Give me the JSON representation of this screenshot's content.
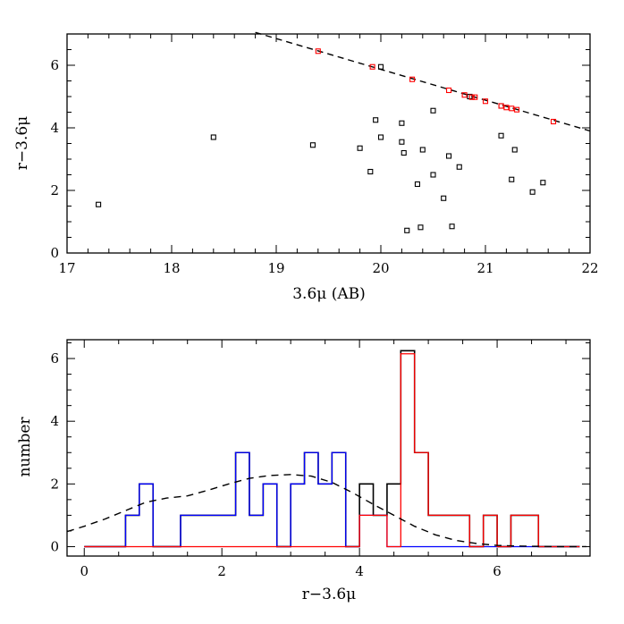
{
  "chart_data": [
    {
      "type": "scatter",
      "title": "",
      "xlabel": "3.6μ (AB)",
      "ylabel": "r−3.6μ",
      "xlim": [
        17,
        22
      ],
      "ylim": [
        0,
        7
      ],
      "xticks": [
        17,
        18,
        19,
        20,
        21,
        22
      ],
      "yticks": [
        0,
        2,
        4,
        6
      ],
      "xtick_labels": [
        "17",
        "18",
        "19",
        "20",
        "21",
        "22"
      ],
      "ytick_labels": [
        "0",
        "2",
        "4",
        "6"
      ],
      "colors": {
        "black_points": "#000000",
        "red_points": "#ff0000",
        "fit_line": "#000000"
      },
      "fit_line": {
        "style": "dashed",
        "x": [
          18.8,
          22.0
        ],
        "y": [
          7.05,
          3.9
        ]
      },
      "series": [
        {
          "name": "black",
          "points": [
            [
              17.3,
              1.55
            ],
            [
              18.4,
              3.7
            ],
            [
              19.35,
              3.45
            ],
            [
              19.8,
              3.35
            ],
            [
              19.9,
              2.6
            ],
            [
              19.95,
              4.25
            ],
            [
              20.0,
              3.7
            ],
            [
              20.2,
              4.15
            ],
            [
              20.2,
              3.55
            ],
            [
              20.22,
              3.2
            ],
            [
              20.25,
              0.72
            ],
            [
              20.35,
              2.2
            ],
            [
              20.38,
              0.82
            ],
            [
              20.4,
              3.3
            ],
            [
              20.5,
              4.55
            ],
            [
              20.5,
              2.5
            ],
            [
              20.6,
              1.75
            ],
            [
              20.65,
              3.1
            ],
            [
              20.68,
              0.85
            ],
            [
              20.75,
              2.75
            ],
            [
              21.15,
              3.75
            ],
            [
              21.25,
              2.35
            ],
            [
              21.28,
              3.3
            ],
            [
              21.45,
              1.95
            ],
            [
              21.55,
              2.25
            ],
            [
              21.15,
              4.7
            ],
            [
              20.85,
              5.0
            ],
            [
              20.0,
              5.95
            ]
          ]
        },
        {
          "name": "red",
          "points": [
            [
              19.4,
              6.45
            ],
            [
              19.92,
              5.95
            ],
            [
              20.3,
              5.55
            ],
            [
              20.65,
              5.2
            ],
            [
              20.8,
              5.05
            ],
            [
              20.87,
              4.98
            ],
            [
              20.9,
              4.98
            ],
            [
              21.0,
              4.85
            ],
            [
              21.15,
              4.7
            ],
            [
              21.2,
              4.65
            ],
            [
              21.25,
              4.62
            ],
            [
              21.3,
              4.58
            ],
            [
              21.65,
              4.2
            ]
          ]
        }
      ]
    },
    {
      "type": "histogram",
      "title": "",
      "xlabel": "r−3.6μ",
      "ylabel": "number",
      "xlim": [
        -0.25,
        7.35
      ],
      "ylim": [
        -0.3,
        6.6
      ],
      "xticks": [
        0,
        2,
        4,
        6
      ],
      "yticks": [
        0,
        2,
        4,
        6
      ],
      "xtick_labels": [
        "0",
        "2",
        "4",
        "6"
      ],
      "ytick_labels": [
        "0",
        "2",
        "4",
        "6"
      ],
      "colors": {
        "total": "#000000",
        "blue": "#0000ff",
        "red": "#ff0000",
        "gaussian": "#000000"
      },
      "bin_edges": [
        0.0,
        0.2,
        0.4,
        0.6,
        0.8,
        1.0,
        1.2,
        1.4,
        1.6,
        1.8,
        2.0,
        2.2,
        2.4,
        2.6,
        2.8,
        3.0,
        3.2,
        3.4,
        3.6,
        3.8,
        4.0,
        4.2,
        4.4,
        4.6,
        4.8,
        5.0,
        5.2,
        5.4,
        5.6,
        5.8,
        6.0,
        6.2,
        6.4,
        6.6,
        6.8,
        7.0,
        7.2
      ],
      "series": [
        {
          "name": "total",
          "values": [
            0,
            0,
            0,
            1,
            2,
            0,
            0,
            1,
            1,
            1,
            1,
            3,
            1,
            2,
            0,
            2,
            3,
            2,
            3,
            0,
            2,
            1,
            2,
            6.25,
            3,
            1,
            1,
            1,
            0,
            1,
            0,
            1,
            1,
            0,
            0,
            0
          ]
        },
        {
          "name": "blue",
          "values": [
            0,
            0,
            0,
            1,
            2,
            0,
            0,
            1,
            1,
            1,
            1,
            3,
            1,
            2,
            0,
            2,
            3,
            2,
            3,
            0,
            1,
            1,
            0,
            0,
            0,
            0,
            0,
            0,
            0,
            0,
            0,
            0,
            0,
            0,
            0,
            0
          ]
        },
        {
          "name": "red",
          "values": [
            0,
            0,
            0,
            0,
            0,
            0,
            0,
            0,
            0,
            0,
            0,
            0,
            0,
            0,
            0,
            0,
            0,
            0,
            0,
            0,
            1,
            1,
            0,
            6.15,
            3,
            1,
            1,
            1,
            0,
            1,
            0,
            1,
            1,
            0,
            0,
            0
          ]
        }
      ],
      "gaussian_curve": {
        "style": "dashed",
        "x": [
          -0.25,
          0.0,
          0.3,
          0.6,
          0.9,
          1.2,
          1.5,
          1.8,
          2.1,
          2.4,
          2.7,
          3.0,
          3.3,
          3.6,
          3.9,
          4.2,
          4.5,
          4.8,
          5.1,
          5.4,
          5.7,
          6.0,
          6.3,
          6.6,
          6.9,
          7.3
        ],
        "y": [
          0.48,
          0.65,
          0.88,
          1.15,
          1.42,
          1.55,
          1.62,
          1.8,
          2.0,
          2.18,
          2.27,
          2.3,
          2.25,
          2.05,
          1.72,
          1.35,
          1.0,
          0.65,
          0.38,
          0.2,
          0.1,
          0.04,
          0.02,
          0.01,
          0.0,
          0.0
        ]
      }
    }
  ]
}
